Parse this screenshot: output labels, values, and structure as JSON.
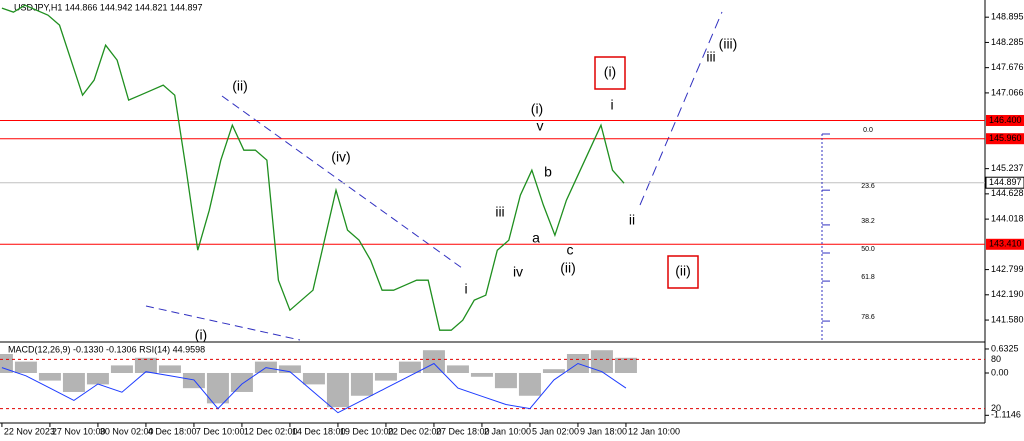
{
  "header": "USDJPY,H1  144.866 144.942 144.821 144.897",
  "chart_data": [
    {
      "type": "line",
      "color": "#1f8f1f",
      "x": [
        0,
        0.24,
        0.48,
        0.72,
        0.96,
        1.2,
        1.44,
        1.68,
        1.92,
        2.16,
        2.4,
        2.64,
        2.88,
        3.12,
        3.36,
        3.6,
        3.84,
        4.08,
        4.32,
        4.56,
        4.8,
        5.04,
        5.28,
        5.52,
        5.76,
        6,
        6.24,
        6.48,
        6.72,
        6.96,
        7.2,
        7.44,
        7.68,
        7.92,
        8.16,
        8.4,
        8.64,
        8.88,
        9.12,
        9.36,
        9.6,
        9.84,
        10.08,
        10.32,
        10.56,
        10.8,
        11.04,
        11.28,
        11.52,
        11.76,
        12,
        12.24,
        12.48,
        12.72,
        12.96
      ],
      "values": [
        149.113,
        149.016,
        149.185,
        149.064,
        148.944,
        148.702,
        147.857,
        147.011,
        147.374,
        148.219,
        147.857,
        146.891,
        147.011,
        147.132,
        147.253,
        147.011,
        145.2,
        143.267,
        144.234,
        145.441,
        146.287,
        145.683,
        145.683,
        145.441,
        142.543,
        141.818,
        142.06,
        142.301,
        143.509,
        144.717,
        143.751,
        143.509,
        143.026,
        142.301,
        142.301,
        142.422,
        142.543,
        142.543,
        141.335,
        141.335,
        141.576,
        142.06,
        142.18,
        143.267,
        143.509,
        144.596,
        145.2,
        144.355,
        143.63,
        144.475,
        145.079,
        145.683,
        146.287,
        145.2,
        144.886
      ],
      "xlim": [
        -0.04,
        20.48
      ],
      "xticks": [
        {
          "value": 0,
          "label": "22 Nov 2023"
        },
        {
          "value": 1,
          "label": "27 Nov 10:00"
        },
        {
          "value": 2,
          "label": "30 Nov 02:00"
        },
        {
          "value": 3,
          "label": "4 Dec 18:00"
        },
        {
          "value": 4,
          "label": "7 Dec 10:00"
        },
        {
          "value": 5,
          "label": "12 Dec 02:00"
        },
        {
          "value": 6,
          "label": "14 Dec 18:00"
        },
        {
          "value": 7,
          "label": "19 Dec 10:00"
        },
        {
          "value": 8,
          "label": "22 Dec 02:00"
        },
        {
          "value": 9,
          "label": "27 Dec 18:00"
        },
        {
          "value": 10,
          "label": "2 Jan 10:00"
        },
        {
          "value": 11,
          "label": "5 Jan 02:00"
        },
        {
          "value": 12,
          "label": "9 Jan 18:00"
        },
        {
          "value": 13,
          "label": "12 Jan 10:00"
        }
      ],
      "ylim": [
        141.05,
        149.31
      ],
      "yticks": [
        {
          "value": 148.895,
          "label": "148.895"
        },
        {
          "value": 148.285,
          "label": "148.285"
        },
        {
          "value": 147.676,
          "label": "147.676"
        },
        {
          "value": 147.066,
          "label": "147.066"
        },
        {
          "value": 145.237,
          "label": "145.237"
        },
        {
          "value": 144.628,
          "label": "144.628"
        },
        {
          "value": 144.018,
          "label": "144.018"
        },
        {
          "value": 142.799,
          "label": "142.799"
        },
        {
          "value": 142.19,
          "label": "142.190"
        },
        {
          "value": 141.58,
          "label": "141.580"
        }
      ],
      "levels": [
        {
          "value": 146.4,
          "label": "146.400",
          "color": "#ff0000"
        },
        {
          "value": 145.96,
          "label": "145.960",
          "color": "#ff0000"
        },
        {
          "value": 143.41,
          "label": "143.410",
          "color": "#ff0000"
        }
      ],
      "current": {
        "value": 144.897,
        "label": "144.897",
        "color": "#c0c0c0"
      },
      "fib_levels": [
        {
          "value": 0,
          "label": "0.0"
        },
        {
          "value": 23.6,
          "label": "23.6"
        },
        {
          "value": 38.2,
          "label": "38.2"
        },
        {
          "value": 50,
          "label": "50.0"
        },
        {
          "value": 61.8,
          "label": "61.8"
        },
        {
          "value": 78.6,
          "label": "78.6"
        }
      ],
      "annotations": [
        {
          "text": "(ii)",
          "color": "#3030c0"
        },
        {
          "text": "(iv)",
          "color": "#3030c0"
        },
        {
          "text": "(i)",
          "color": "#3030c0"
        },
        {
          "text": "(i)",
          "color": "#3030c0"
        },
        {
          "text": "v",
          "color": "#e020e0"
        },
        {
          "text": "i",
          "color": "#e020e0"
        },
        {
          "text": "iii",
          "color": "#e020e0"
        },
        {
          "text": "iv",
          "color": "#e020e0"
        },
        {
          "text": "a",
          "color": "#e020e0"
        },
        {
          "text": "b",
          "color": "#e020e0"
        },
        {
          "text": "c",
          "color": "#e020e0"
        },
        {
          "text": "(ii)",
          "color": "#3030c0"
        },
        {
          "text": "i",
          "color": "#e020e0"
        },
        {
          "text": "ii",
          "color": "#e020e0"
        },
        {
          "text": "iii",
          "color": "#e020e0"
        },
        {
          "text": "(iii)",
          "color": "#3030c0"
        },
        {
          "text": "(i)",
          "color": "#3030c0",
          "boxed": true
        },
        {
          "text": "(ii)",
          "color": "#3030c0",
          "boxed": true
        }
      ]
    },
    {
      "type": "indicator",
      "title": "MACD(12,26,9) -0.1330 -0.1306 RSI(14) 44.9598",
      "x": [
        0,
        0.5,
        1,
        1.5,
        2,
        2.5,
        3,
        3.5,
        4,
        4.5,
        5,
        5.5,
        6,
        6.5,
        7,
        7.5,
        8,
        8.5,
        9,
        9.5,
        10,
        10.5,
        11,
        11.5,
        12,
        12.5,
        13
      ],
      "histogram": [
        0.5,
        0.3,
        -0.2,
        -0.5,
        -0.3,
        0.2,
        0.4,
        0.2,
        -0.4,
        -0.8,
        -0.5,
        0.3,
        0.2,
        -0.3,
        -0.9,
        -0.6,
        -0.2,
        0.3,
        0.6,
        0.2,
        -0.1,
        -0.4,
        -0.6,
        0.1,
        0.5,
        0.6,
        0.4
      ],
      "histogram_color": "#b4b4b4",
      "rsi": [
        70,
        60,
        45,
        30,
        50,
        40,
        65,
        60,
        55,
        20,
        50,
        70,
        65,
        40,
        15,
        30,
        45,
        60,
        75,
        45,
        35,
        25,
        20,
        55,
        75,
        65,
        45
      ],
      "rsi_color": "#1e3cff",
      "ylim": [
        -1.37,
        0.79
      ],
      "yticks": [
        {
          "value": 0.6325,
          "label": "0.6325"
        },
        {
          "value": 0,
          "label": "0.00"
        },
        {
          "value": -1.1146,
          "label": "-1.1146"
        }
      ],
      "y2lim": [
        0,
        100
      ],
      "y2ticks": [
        80,
        20
      ]
    }
  ]
}
